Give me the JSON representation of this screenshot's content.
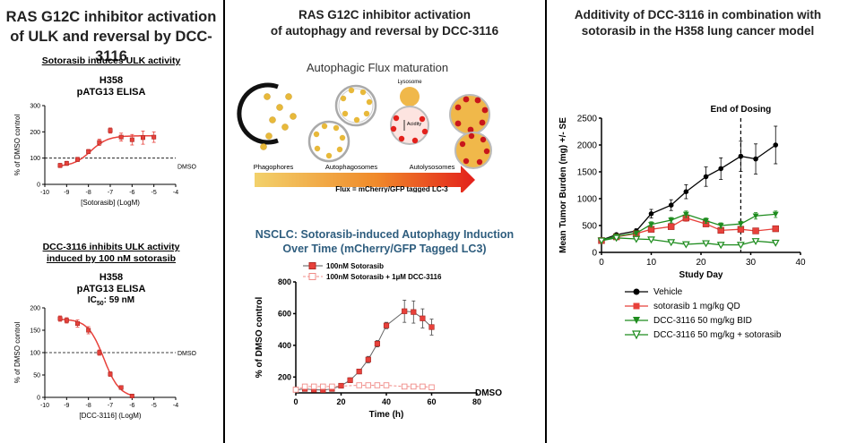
{
  "left": {
    "title_line1": "RAS G12C inhibitor activation",
    "title_line2": "of ULK and reversal by DCC-3116",
    "sub1": "Sotorasib induces ULK activity",
    "cap1_line1": "H358",
    "cap1_line2": "pATG13 ELISA",
    "sub2_line1": "DCC-3116 inhibits ULK activity",
    "sub2_line2": "induced by 100 nM sotorasib",
    "cap2_line1": "H358",
    "cap2_line2": "pATG13 ELISA",
    "ic50_label": "IC",
    "ic50_sub": "50",
    "ic50_value": ": 59 nM"
  },
  "middle": {
    "title_line1": "RAS G12C inhibitor activation",
    "title_line2": "of autophagy and reversal by DCC-3116",
    "schematic_title": "Autophagic Flux maturation",
    "lysosome_label": "Lysosome",
    "acidity_label": "Acidity",
    "stage1": "Phagophores",
    "stage2": "Autophagosomes",
    "stage3": "Autolysosomes",
    "flux_label": "Flux = mCherry/GFP tagged LC-3",
    "chart_title_line1": "NSCLC: Sotorasib-induced Autophagy Induction",
    "chart_title_line2": "Over Time (mCherry/GFP Tagged LC3)"
  },
  "right": {
    "title_line1": "Additivity of DCC-3116 in combination with",
    "title_line2": "sotorasib in the H358 lung cancer model"
  },
  "colors": {
    "red": "#e8413b",
    "pink": "#f08c88",
    "green": "#1e8c1e",
    "black": "#000000",
    "gold": "#e8b93a",
    "blue_title": "#2e5d7e"
  },
  "chart_data": [
    {
      "type": "scatter",
      "title": "",
      "xlabel": "[Sotorasib] (LogM)",
      "ylabel": "% of DMSO control",
      "xlim": [
        -10,
        -4
      ],
      "ylim": [
        0,
        300
      ],
      "xticks": [
        -10,
        -9,
        -8,
        -7,
        -6,
        -5,
        -4
      ],
      "yticks": [
        0,
        100,
        200,
        300
      ],
      "reference_line": {
        "y": 100,
        "label": "DMSO"
      },
      "series": [
        {
          "name": "Sotorasib",
          "x": [
            -9.3,
            -9.0,
            -8.5,
            -8.0,
            -7.5,
            -7.0,
            -6.5,
            -6.0,
            -5.5,
            -5.0
          ],
          "y": [
            72,
            80,
            95,
            125,
            160,
            205,
            180,
            170,
            178,
            180
          ],
          "err": [
            8,
            8,
            8,
            8,
            12,
            10,
            15,
            20,
            25,
            20
          ]
        }
      ]
    },
    {
      "type": "scatter",
      "title": "",
      "xlabel": "[DCC-3116] (LogM)",
      "ylabel": "% of DMSO control",
      "xlim": [
        -10,
        -4
      ],
      "ylim": [
        0,
        200
      ],
      "xticks": [
        -10,
        -9,
        -8,
        -7,
        -6,
        -5,
        -4
      ],
      "yticks": [
        0,
        50,
        100,
        150,
        200
      ],
      "reference_line": {
        "y": 100,
        "label": "DMSO"
      },
      "series": [
        {
          "name": "DCC-3116",
          "x": [
            -9.3,
            -9.0,
            -8.5,
            -8.0,
            -7.5,
            -7.0,
            -6.5,
            -6.0
          ],
          "y": [
            176,
            172,
            165,
            150,
            100,
            52,
            22,
            3
          ],
          "err": [
            6,
            6,
            8,
            8,
            6,
            5,
            4,
            3
          ]
        }
      ]
    },
    {
      "type": "line",
      "title": "NSCLC: Sotorasib-induced Autophagy Induction Over Time (mCherry/GFP Tagged LC3)",
      "xlabel": "Time (h)",
      "ylabel": "% of DMSO control",
      "xlim": [
        0,
        80
      ],
      "ylim": [
        100,
        800
      ],
      "xticks": [
        0,
        20,
        40,
        60,
        80
      ],
      "yticks": [
        200,
        400,
        600,
        800
      ],
      "reference_line": {
        "y": 100,
        "label": "DMSO"
      },
      "series": [
        {
          "name": "100nM Sotorasib",
          "x": [
            0,
            4,
            8,
            12,
            16,
            20,
            24,
            28,
            32,
            36,
            40,
            48,
            52,
            56,
            60
          ],
          "y": [
            120,
            125,
            120,
            118,
            125,
            145,
            180,
            235,
            310,
            410,
            525,
            615,
            610,
            570,
            515
          ],
          "err": [
            10,
            10,
            10,
            10,
            10,
            12,
            15,
            15,
            20,
            20,
            20,
            70,
            70,
            60,
            50
          ]
        },
        {
          "name": "100nM Sotorasib + 1µM DCC-3116",
          "x": [
            0,
            4,
            8,
            12,
            16,
            28,
            32,
            36,
            40,
            48,
            52,
            56,
            60
          ],
          "y": [
            120,
            140,
            140,
            140,
            140,
            148,
            148,
            148,
            148,
            140,
            140,
            140,
            135
          ],
          "err": [
            8,
            8,
            8,
            8,
            8,
            8,
            8,
            8,
            8,
            8,
            8,
            8,
            8
          ]
        }
      ]
    },
    {
      "type": "line",
      "title": "",
      "xlabel": "Study  Day",
      "ylabel": "Mean Tumor Burden (mg) +/- SE",
      "xlim": [
        0,
        40
      ],
      "ylim": [
        0,
        2500
      ],
      "xticks": [
        0,
        10,
        20,
        30,
        40
      ],
      "yticks": [
        0,
        500,
        1000,
        1500,
        2000,
        2500
      ],
      "annotation": {
        "x": 28,
        "label": "End of Dosing"
      },
      "series": [
        {
          "name": "Vehicle",
          "color": "#000000",
          "marker": "circle",
          "x": [
            0,
            3,
            7,
            10,
            14,
            17,
            21,
            24,
            28,
            31,
            35
          ],
          "y": [
            230,
            330,
            400,
            720,
            880,
            1130,
            1410,
            1560,
            1790,
            1740,
            2000
          ],
          "err": [
            30,
            30,
            40,
            80,
            100,
            130,
            180,
            200,
            280,
            280,
            350
          ]
        },
        {
          "name": "sotorasib 1 mg/kg QD",
          "color": "#e8413b",
          "marker": "square",
          "x": [
            0,
            3,
            7,
            10,
            14,
            17,
            21,
            24,
            28,
            31,
            35
          ],
          "y": [
            220,
            290,
            350,
            430,
            480,
            640,
            530,
            410,
            430,
            400,
            440
          ],
          "err": [
            20,
            20,
            30,
            40,
            40,
            60,
            50,
            40,
            40,
            40,
            40
          ]
        },
        {
          "name": "DCC-3116 50 mg/kg BID",
          "color": "#1e8c1e",
          "marker": "triangle-down",
          "x": [
            0,
            3,
            7,
            10,
            14,
            17,
            21,
            24,
            28,
            31,
            35
          ],
          "y": [
            230,
            300,
            360,
            520,
            600,
            710,
            590,
            500,
            530,
            680,
            710
          ],
          "err": [
            20,
            20,
            30,
            50,
            50,
            60,
            50,
            50,
            50,
            60,
            60
          ]
        },
        {
          "name": "DCC-3116 50 mg/kg + sotorasib",
          "color": "#1e8c1e",
          "marker": "triangle-down-open",
          "x": [
            0,
            3,
            7,
            10,
            14,
            17,
            21,
            24,
            28,
            31,
            35
          ],
          "y": [
            220,
            270,
            250,
            240,
            190,
            150,
            170,
            140,
            140,
            210,
            180
          ],
          "err": [
            20,
            20,
            20,
            20,
            20,
            20,
            20,
            20,
            20,
            20,
            20
          ]
        }
      ]
    }
  ]
}
